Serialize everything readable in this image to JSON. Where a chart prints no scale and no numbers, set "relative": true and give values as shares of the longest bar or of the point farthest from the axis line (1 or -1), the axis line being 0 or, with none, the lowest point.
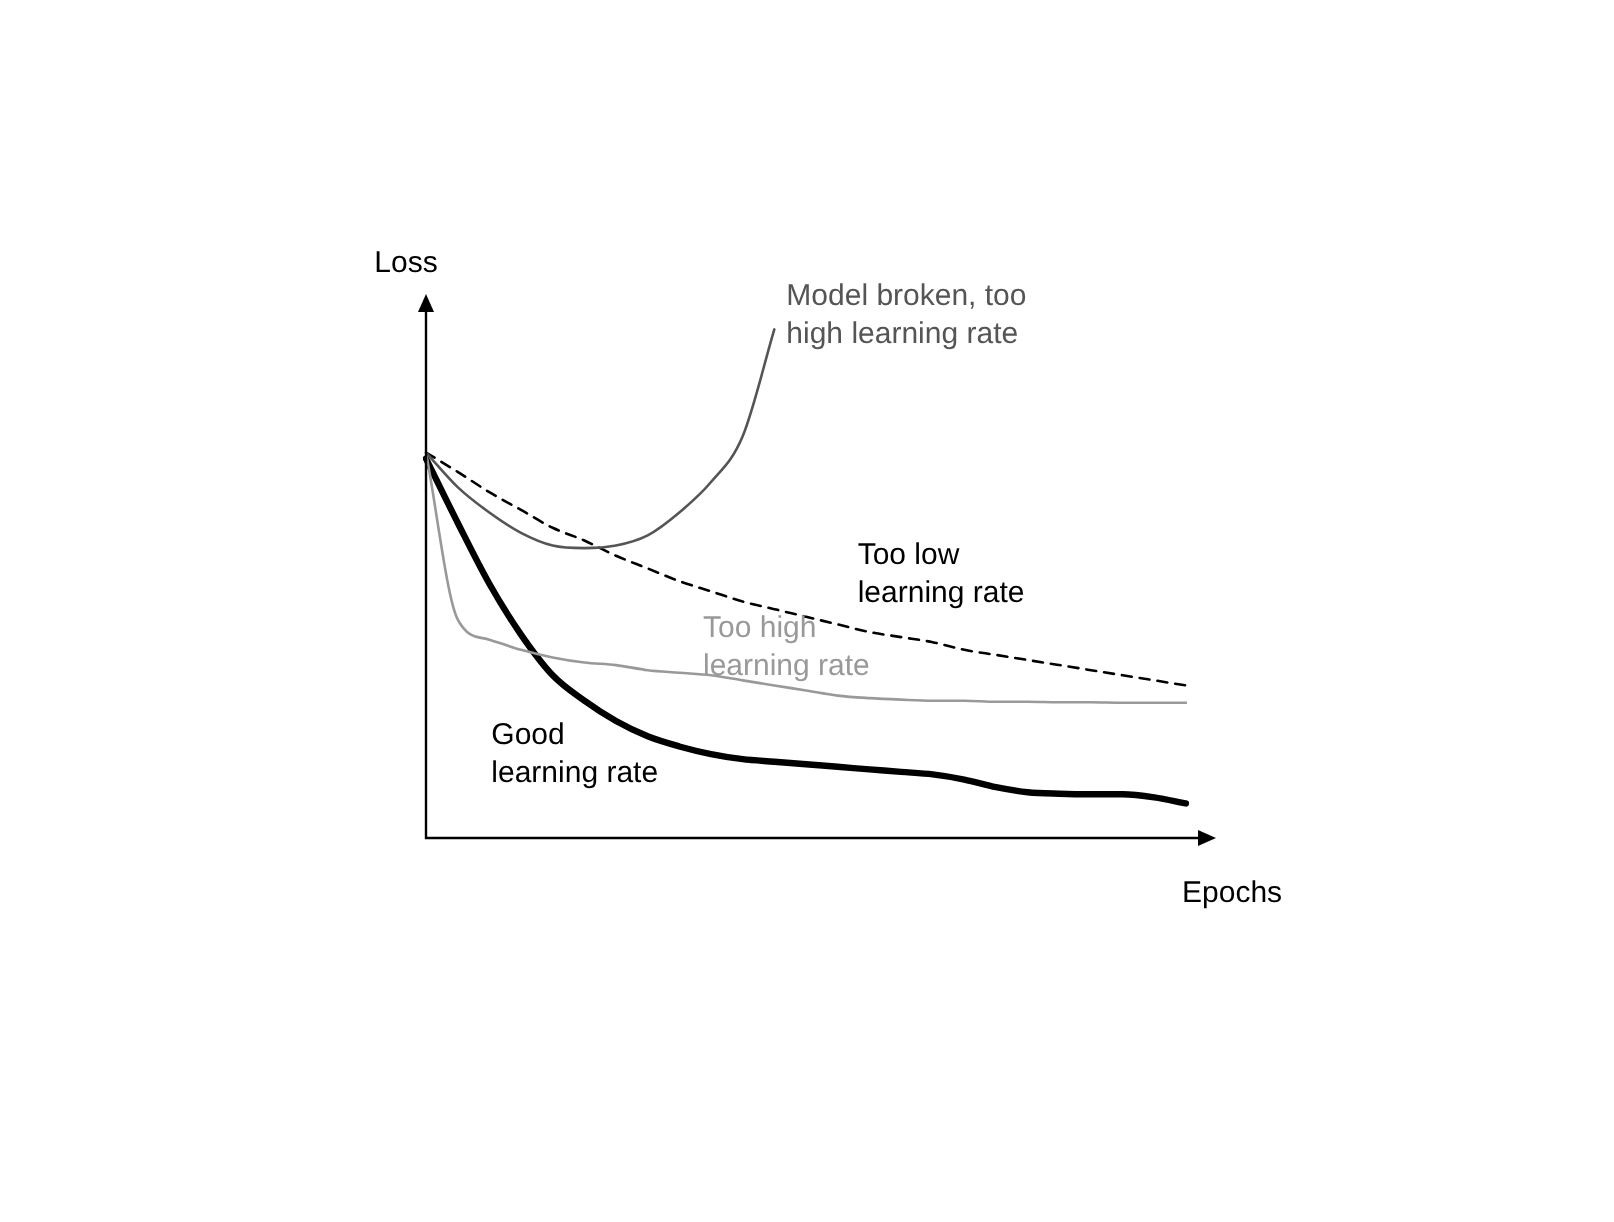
{
  "chart_data": {
    "type": "line",
    "relative": true,
    "xlabel": "Epochs",
    "ylabel": "Loss",
    "legend": false,
    "grid": false,
    "marker": "none",
    "categories": [
      null,
      null,
      null,
      null,
      null,
      null,
      null,
      null,
      null,
      null,
      null,
      null,
      null,
      null,
      null,
      null,
      null,
      null,
      null,
      null,
      null,
      null,
      null,
      null,
      null
    ],
    "series": [
      {
        "name": "Model broken, too high learning rate",
        "color": "#555555",
        "line_style": "solid",
        "values": [
          0.758,
          0.69,
          0.64,
          0.6,
          0.575,
          0.57,
          0.575,
          0.595,
          0.64,
          0.7,
          0.79,
          1,
          null,
          null,
          null,
          null,
          null,
          null,
          null,
          null,
          null,
          null,
          null,
          null,
          null
        ]
      },
      {
        "name": "Too low learning rate",
        "color": "#000000",
        "line_style": "dashed",
        "values": [
          0.758,
          0.72,
          0.68,
          0.645,
          0.61,
          0.585,
          0.555,
          0.53,
          0.505,
          0.485,
          0.465,
          0.45,
          0.435,
          0.42,
          0.405,
          0.395,
          0.385,
          0.37,
          0.36,
          0.35,
          0.34,
          0.33,
          0.32,
          0.31,
          0.3
        ]
      },
      {
        "name": "Too high learning rate",
        "color": "#999999",
        "line_style": "solid",
        "values": [
          0.758,
          0.43,
          0.39,
          0.37,
          0.355,
          0.345,
          0.34,
          0.33,
          0.325,
          0.32,
          0.31,
          0.3,
          0.29,
          0.28,
          0.275,
          0.272,
          0.27,
          0.27,
          0.268,
          0.268,
          0.267,
          0.267,
          0.266,
          0.266,
          0.266
        ]
      },
      {
        "name": "Good learning rate",
        "color": "#000000",
        "line_style": "solid",
        "values": [
          0.746,
          0.62,
          0.5,
          0.4,
          0.32,
          0.27,
          0.23,
          0.2,
          0.18,
          0.165,
          0.155,
          0.15,
          0.145,
          0.14,
          0.135,
          0.13,
          0.125,
          0.115,
          0.1,
          0.09,
          0.087,
          0.086,
          0.086,
          0.08,
          0.068
        ]
      }
    ]
  }
}
